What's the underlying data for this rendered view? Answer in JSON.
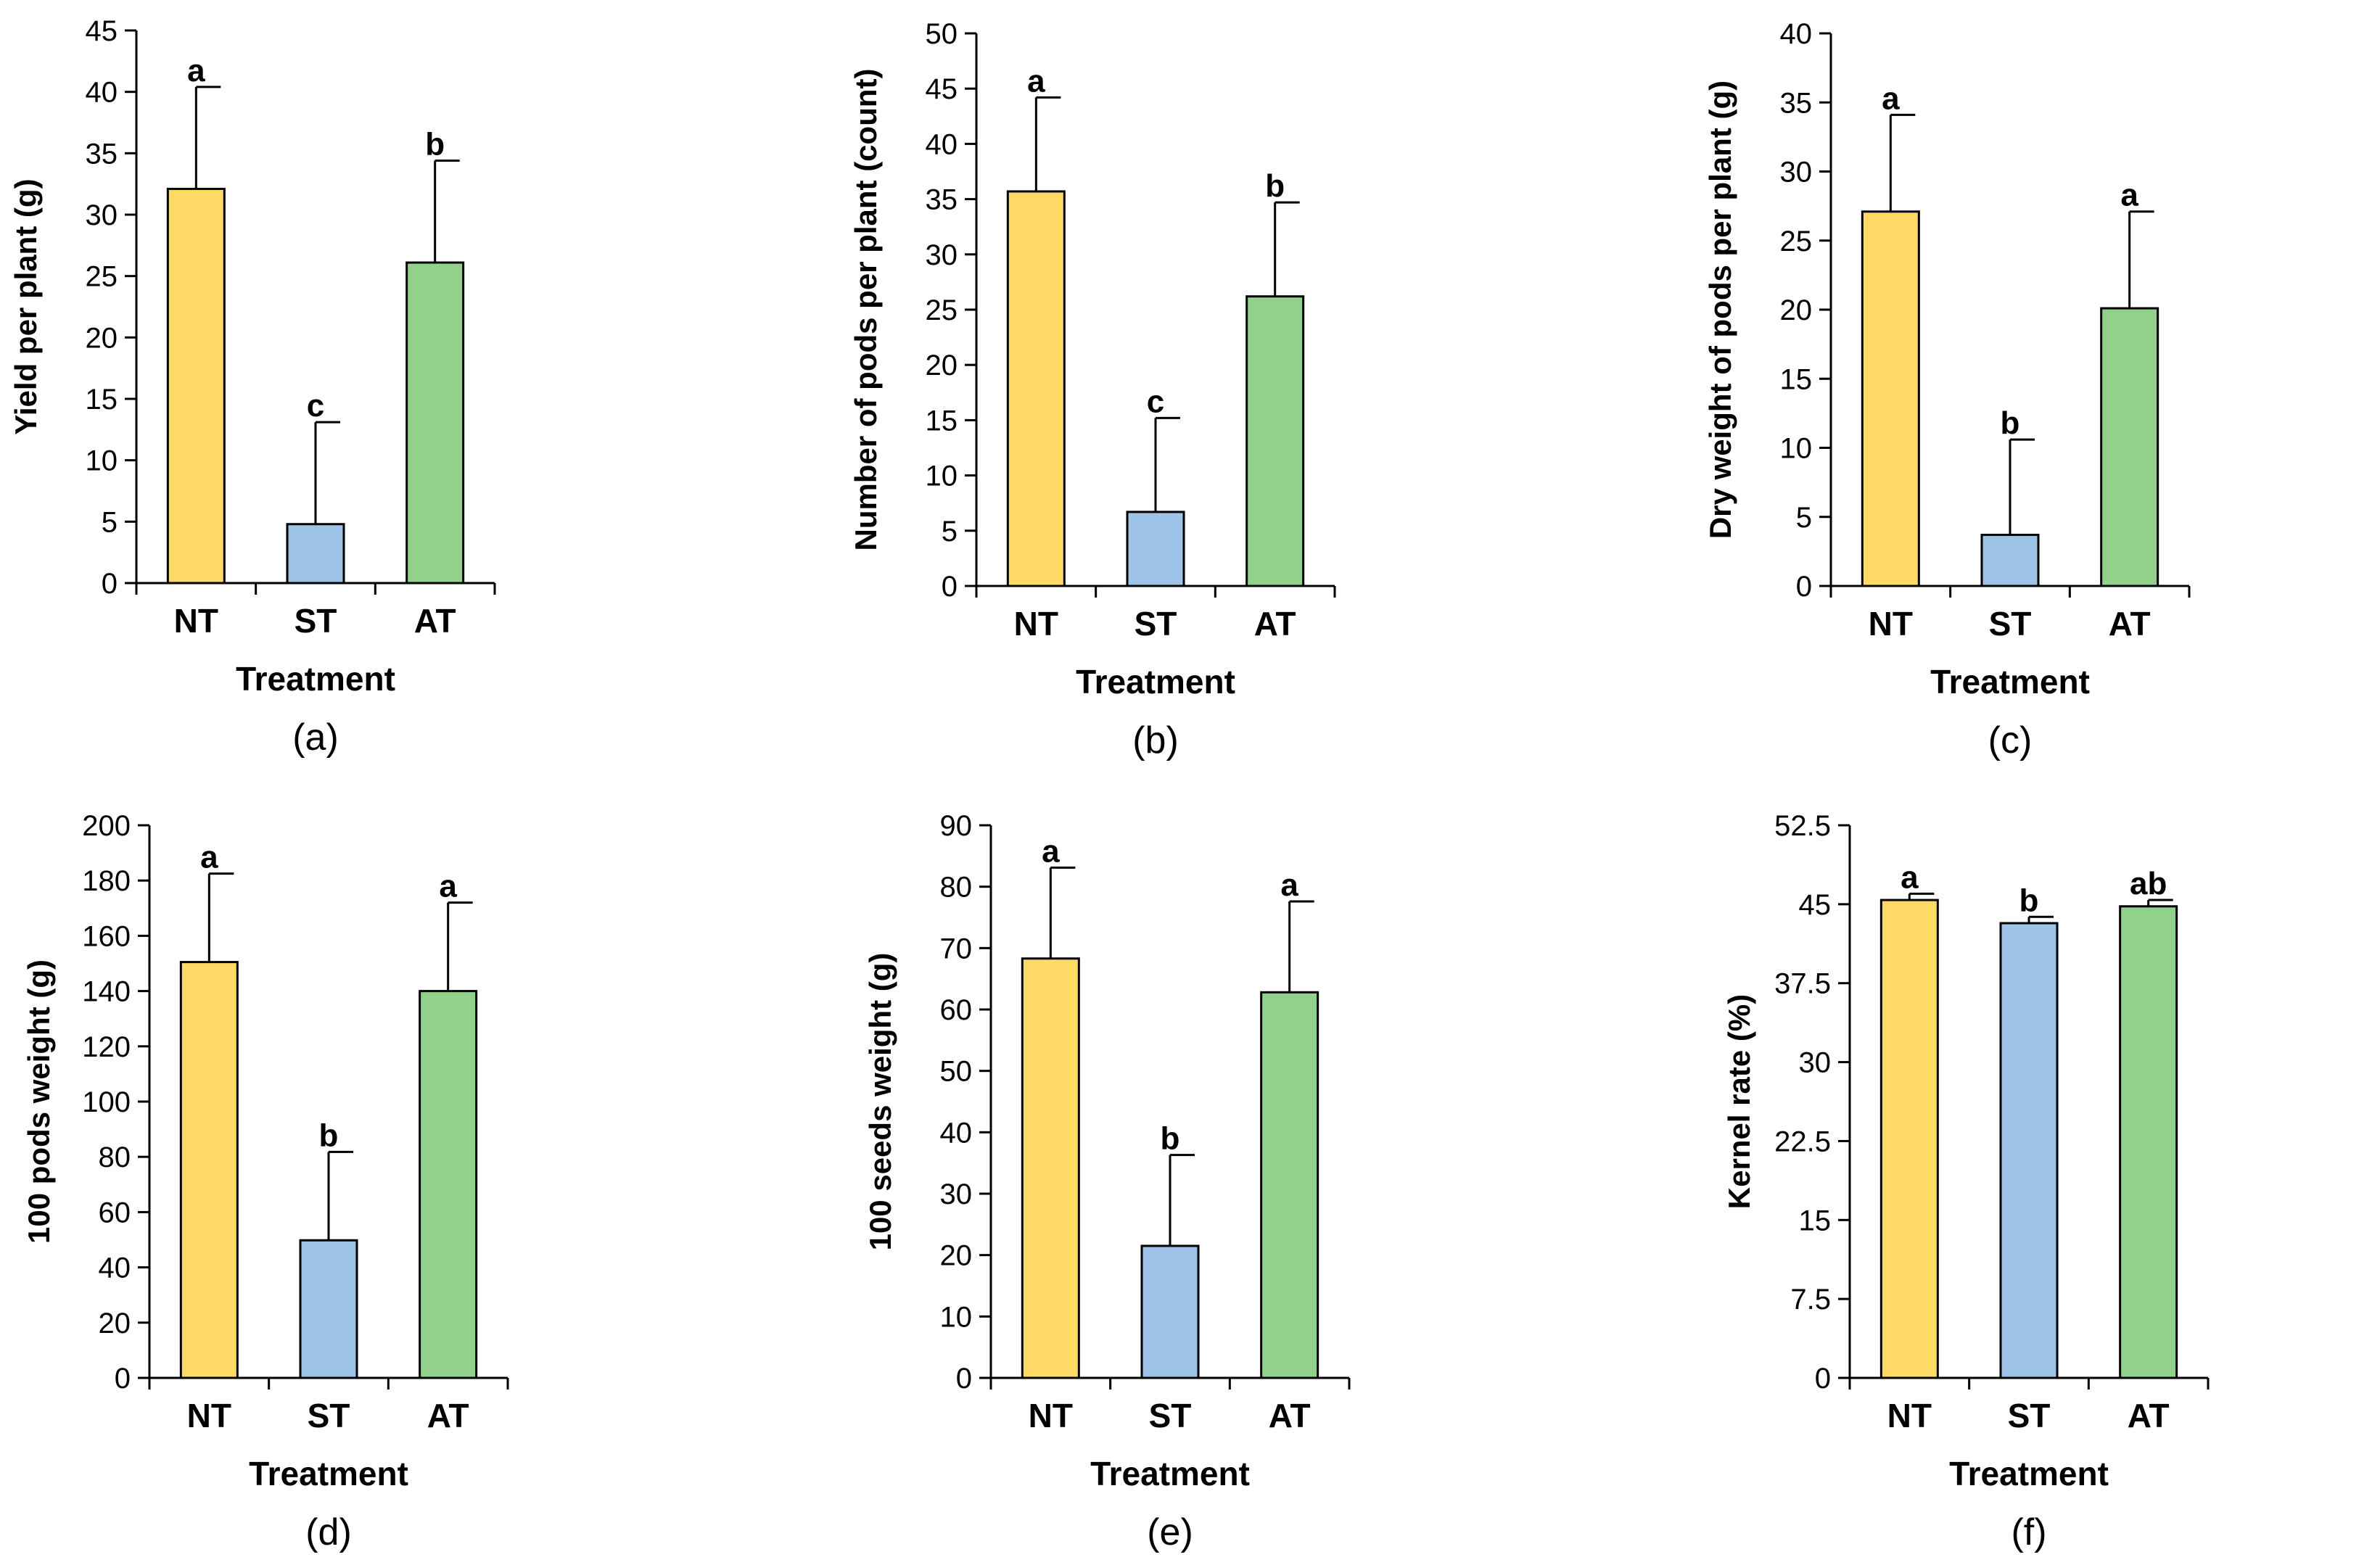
{
  "chart_data": [
    {
      "type": "bar",
      "panel": "(a)",
      "categories": [
        "NT",
        "ST",
        "AT"
      ],
      "values": [
        32.1,
        4.8,
        26.1
      ],
      "errors": [
        8.3,
        8.3,
        8.3
      ],
      "letters": [
        "a",
        "c",
        "b"
      ],
      "colors": [
        "#FFD966",
        "#9DC3E6",
        "#92D18B"
      ],
      "xlabel": "Treatment",
      "ylabel": "Yield per plant (g)",
      "ylim": [
        0,
        45
      ],
      "yticks": [
        0,
        5,
        10,
        15,
        20,
        25,
        30,
        35,
        40,
        45
      ],
      "ytick_labels": [
        "0",
        "5",
        "10",
        "15",
        "20",
        "25",
        "30",
        "35",
        "40",
        "45"
      ]
    },
    {
      "type": "bar",
      "panel": "(b)",
      "categories": [
        "NT",
        "ST",
        "AT"
      ],
      "values": [
        35.7,
        6.7,
        26.2
      ],
      "errors": [
        8.5,
        8.5,
        8.5
      ],
      "letters": [
        "a",
        "c",
        "b"
      ],
      "colors": [
        "#FFD966",
        "#9DC3E6",
        "#92D18B"
      ],
      "xlabel": "Treatment",
      "ylabel": "Number of pods per plant (count)",
      "ylim": [
        0,
        50
      ],
      "yticks": [
        0,
        5,
        10,
        15,
        20,
        25,
        30,
        35,
        40,
        45,
        50
      ],
      "ytick_labels": [
        "0",
        "5",
        "10",
        "15",
        "20",
        "25",
        "30",
        "35",
        "40",
        "45",
        "50"
      ]
    },
    {
      "type": "bar",
      "panel": "(c)",
      "categories": [
        "NT",
        "ST",
        "AT"
      ],
      "values": [
        27.1,
        3.7,
        20.1
      ],
      "errors": [
        7.0,
        6.9,
        7.0
      ],
      "letters": [
        "a",
        "b",
        "a"
      ],
      "colors": [
        "#FFD966",
        "#9DC3E6",
        "#92D18B"
      ],
      "xlabel": "Treatment",
      "ylabel": "Dry weight of pods per plant (g)",
      "ylim": [
        0,
        40
      ],
      "yticks": [
        0,
        5,
        10,
        15,
        20,
        25,
        30,
        35,
        40
      ],
      "ytick_labels": [
        "0",
        "5",
        "10",
        "15",
        "20",
        "25",
        "30",
        "35",
        "40"
      ]
    },
    {
      "type": "bar",
      "panel": "(d)",
      "categories": [
        "NT",
        "ST",
        "AT"
      ],
      "values": [
        150.5,
        49.8,
        140.0
      ],
      "errors": [
        32.0,
        32.0,
        32.0
      ],
      "letters": [
        "a",
        "b",
        "a"
      ],
      "colors": [
        "#FFD966",
        "#9DC3E6",
        "#92D18B"
      ],
      "xlabel": "Treatment",
      "ylabel": "100 pods weight (g)",
      "ylim": [
        0,
        200
      ],
      "yticks": [
        0,
        20,
        40,
        60,
        80,
        100,
        120,
        140,
        160,
        180,
        200
      ],
      "ytick_labels": [
        "0",
        "20",
        "40",
        "60",
        "80",
        "100",
        "120",
        "140",
        "160",
        "180",
        "200"
      ]
    },
    {
      "type": "bar",
      "panel": "(e)",
      "categories": [
        "NT",
        "ST",
        "AT"
      ],
      "values": [
        68.3,
        21.5,
        62.8
      ],
      "errors": [
        14.8,
        14.8,
        14.8
      ],
      "letters": [
        "a",
        "b",
        "a"
      ],
      "colors": [
        "#FFD966",
        "#9DC3E6",
        "#92D18B"
      ],
      "xlabel": "Treatment",
      "ylabel": "100 seeds weight (g)",
      "ylim": [
        0,
        90
      ],
      "yticks": [
        0,
        10,
        20,
        30,
        40,
        50,
        60,
        70,
        80,
        90
      ],
      "ytick_labels": [
        "0",
        "10",
        "20",
        "30",
        "40",
        "50",
        "60",
        "70",
        "80",
        "90"
      ]
    },
    {
      "type": "bar",
      "panel": "(f)",
      "categories": [
        "NT",
        "ST",
        "AT"
      ],
      "values": [
        45.4,
        43.2,
        44.8
      ],
      "errors": [
        0.6,
        0.6,
        0.6
      ],
      "letters": [
        "a",
        "b",
        "ab"
      ],
      "colors": [
        "#FFD966",
        "#9DC3E6",
        "#92D18B"
      ],
      "xlabel": "Treatment",
      "ylabel": "Kernel rate (%)",
      "ylim": [
        0,
        52.5
      ],
      "yticks": [
        0,
        7.5,
        15,
        22.5,
        30,
        37.5,
        45,
        52.5
      ],
      "ytick_labels": [
        "0",
        "7.5",
        "15",
        "22.5",
        "30",
        "37.5",
        "45",
        "52.5"
      ]
    }
  ]
}
